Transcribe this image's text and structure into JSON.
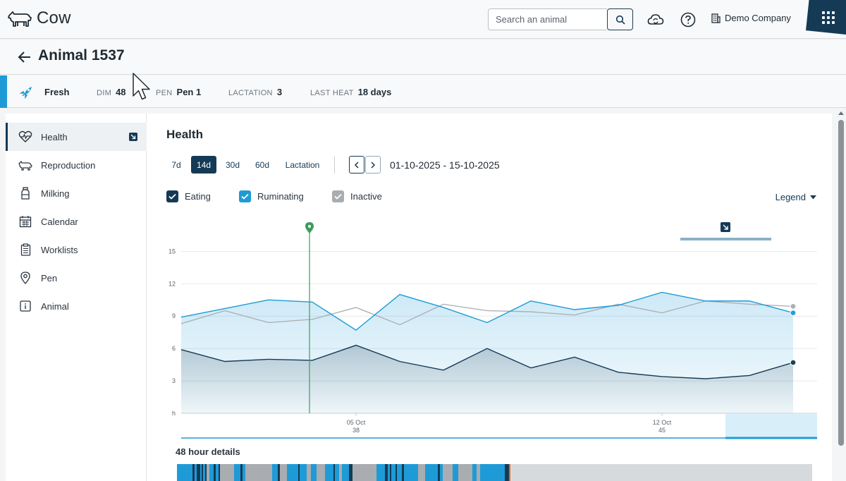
{
  "app": {
    "name": "Cow"
  },
  "header": {
    "search_placeholder": "Search an animal",
    "company": "Demo Company"
  },
  "page": {
    "title": "Animal 1537"
  },
  "status": {
    "label": "Fresh",
    "fields": [
      {
        "key": "DIM",
        "value": "48"
      },
      {
        "key": "PEN",
        "value": "Pen 1"
      },
      {
        "key": "LACTATION",
        "value": "3"
      },
      {
        "key": "LAST HEAT",
        "value": "18 days"
      }
    ]
  },
  "sidebar": {
    "items": [
      {
        "label": "Health",
        "icon": "heart-pulse-icon"
      },
      {
        "label": "Reproduction",
        "icon": "cow-calf-icon"
      },
      {
        "label": "Milking",
        "icon": "milk-bottle-icon"
      },
      {
        "label": "Calendar",
        "icon": "calendar-icon"
      },
      {
        "label": "Worklists",
        "icon": "clipboard-list-icon"
      },
      {
        "label": "Pen",
        "icon": "map-pin-icon"
      },
      {
        "label": "Animal",
        "icon": "info-icon"
      }
    ]
  },
  "health": {
    "title": "Health",
    "ranges": [
      "7d",
      "14d",
      "30d",
      "60d",
      "Lactation"
    ],
    "selected_range": "14d",
    "date_range": "01-10-2025 - 15-10-2025",
    "checkboxes": [
      {
        "label": "Eating",
        "checked": true,
        "color": "#153a56"
      },
      {
        "label": "Ruminating",
        "checked": true,
        "color": "#1e9bd7"
      },
      {
        "label": "Inactive",
        "checked": true,
        "color": "#a9acb0"
      }
    ],
    "legend_label": "Legend",
    "details_label": "48 hour details"
  },
  "chart_data": {
    "type": "line",
    "ylabel": "h",
    "ylim": [
      0,
      16
    ],
    "yticks": [
      3,
      6,
      9,
      12,
      15
    ],
    "x_tick_labels": [
      {
        "date": "05 Oct",
        "dim": "38"
      },
      {
        "date": "12 Oct",
        "dim": "45"
      }
    ],
    "x": [
      "01 Oct",
      "02 Oct",
      "03 Oct",
      "04 Oct",
      "05 Oct",
      "06 Oct",
      "07 Oct",
      "08 Oct",
      "09 Oct",
      "10 Oct",
      "11 Oct",
      "12 Oct",
      "13 Oct",
      "14 Oct",
      "15 Oct"
    ],
    "series": [
      {
        "name": "Ruminating",
        "color": "#1e9bd7",
        "values": [
          8.9,
          9.7,
          10.5,
          10.3,
          7.7,
          11.0,
          9.8,
          8.4,
          10.4,
          9.6,
          10.0,
          11.2,
          10.4,
          10.4,
          9.3
        ]
      },
      {
        "name": "Inactive",
        "color": "#a9acb0",
        "values": [
          8.3,
          9.5,
          8.4,
          8.7,
          9.8,
          8.2,
          10.1,
          9.5,
          9.4,
          9.1,
          10.1,
          9.3,
          10.4,
          10.1,
          9.9
        ]
      },
      {
        "name": "Eating",
        "color": "#153a56",
        "values": [
          5.9,
          4.8,
          5.0,
          4.9,
          6.3,
          4.8,
          4.0,
          6.0,
          4.2,
          5.2,
          3.8,
          3.4,
          3.2,
          3.5,
          4.7
        ]
      }
    ],
    "event_marker_x": "04 Oct",
    "event_marker_color": "#3d9b5b"
  },
  "activity_strip": [
    [
      "#1e9bd7",
      22
    ],
    [
      "#153a56",
      3
    ],
    [
      "#1e9bd7",
      3
    ],
    [
      "#153a56",
      5
    ],
    [
      "#1e9bd7",
      2
    ],
    [
      "#153a56",
      2
    ],
    [
      "#1e9bd7",
      3
    ],
    [
      "#153a56",
      2
    ],
    [
      "#a9acb0",
      4
    ],
    [
      "#1e9bd7",
      6
    ],
    [
      "#153a56",
      3
    ],
    [
      "#1e9bd7",
      4
    ],
    [
      "#153a56",
      2
    ],
    [
      "#a9acb0",
      20
    ],
    [
      "#1e9bd7",
      9
    ],
    [
      "#153a56",
      3
    ],
    [
      "#1e9bd7",
      4
    ],
    [
      "#a9acb0",
      38
    ],
    [
      "#1e9bd7",
      8
    ],
    [
      "#153a56",
      3
    ],
    [
      "#a9acb0",
      10
    ],
    [
      "#1e9bd7",
      16
    ],
    [
      "#153a56",
      2
    ],
    [
      "#1e9bd7",
      10
    ],
    [
      "#a9acb0",
      6
    ],
    [
      "#1e9bd7",
      8
    ],
    [
      "#a9acb0",
      12
    ],
    [
      "#1e9bd7",
      12
    ],
    [
      "#153a56",
      2
    ],
    [
      "#1e9bd7",
      6
    ],
    [
      "#a9acb0",
      4
    ],
    [
      "#1e9bd7",
      10
    ],
    [
      "#153a56",
      5
    ],
    [
      "#a9acb0",
      34
    ],
    [
      "#1e9bd7",
      12
    ],
    [
      "#153a56",
      4
    ],
    [
      "#1e9bd7",
      3
    ],
    [
      "#153a56",
      2
    ],
    [
      "#1e9bd7",
      6
    ],
    [
      "#153a56",
      2
    ],
    [
      "#1e9bd7",
      7
    ],
    [
      "#153a56",
      3
    ],
    [
      "#1e9bd7",
      20
    ],
    [
      "#a9acb0",
      10
    ],
    [
      "#1e9bd7",
      18
    ],
    [
      "#153a56",
      3
    ],
    [
      "#1e9bd7",
      4
    ],
    [
      "#a9acb0",
      14
    ],
    [
      "#1e9bd7",
      8
    ],
    [
      "#a9acb0",
      20
    ],
    [
      "#1e9bd7",
      6
    ],
    [
      "#a9acb0",
      5
    ],
    [
      "#1e9bd7",
      35
    ],
    [
      "#153a56",
      6
    ],
    [
      "#e8662a",
      2
    ]
  ]
}
